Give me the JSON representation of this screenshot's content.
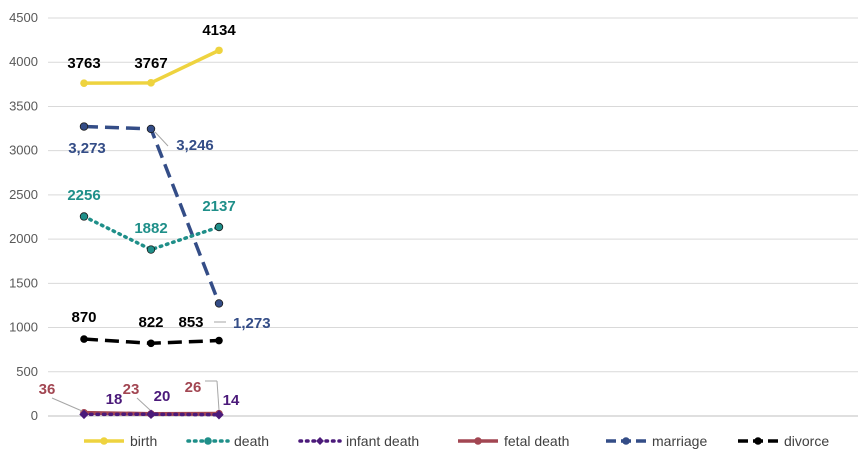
{
  "chart_data": {
    "type": "line",
    "title": "",
    "xlabel": "",
    "ylabel": "",
    "ylim": [
      0,
      4500
    ],
    "y_ticks": [
      0,
      500,
      1000,
      1500,
      2000,
      2500,
      3000,
      3500,
      4000,
      4500
    ],
    "grid": true,
    "legend_position": "bottom",
    "x": [
      1,
      2,
      3
    ],
    "series": [
      {
        "name": "birth",
        "key": "birth",
        "values": [
          3763,
          3767,
          4134
        ],
        "labels": [
          "3763",
          "3767",
          "4134"
        ],
        "color": "#EED33F",
        "dash": "solid",
        "marker": "circle"
      },
      {
        "name": "death",
        "key": "death",
        "values": [
          2256,
          1882,
          2137
        ],
        "labels": [
          "2256",
          "1882",
          "2137"
        ],
        "color": "#1F8F89",
        "dash": "dotted",
        "marker": "circle"
      },
      {
        "name": "infant death",
        "key": "infant",
        "values": [
          18,
          20,
          14
        ],
        "labels": [
          "18",
          "20",
          "14"
        ],
        "color": "#4B1A7A",
        "dash": "dotted",
        "marker": "diamond"
      },
      {
        "name": "fetal death",
        "key": "fetal",
        "values": [
          36,
          23,
          26
        ],
        "labels": [
          "36",
          "23",
          "26"
        ],
        "color": "#A24652",
        "dash": "solid",
        "marker": "circle"
      },
      {
        "name": "marriage",
        "key": "marriage",
        "values": [
          3273,
          3246,
          1273
        ],
        "labels": [
          "3,273",
          "3,246",
          "1,273"
        ],
        "color": "#344D87",
        "dash": "dashed",
        "marker": "circle"
      },
      {
        "name": "divorce",
        "key": "divorce",
        "values": [
          870,
          822,
          853
        ],
        "labels": [
          "870",
          "822",
          "853"
        ],
        "color": "#000000",
        "dash": "dashed",
        "marker": "circle"
      }
    ],
    "legend": [
      "birth",
      "death",
      "infant death",
      "fetal death",
      "marriage",
      "divorce"
    ]
  }
}
